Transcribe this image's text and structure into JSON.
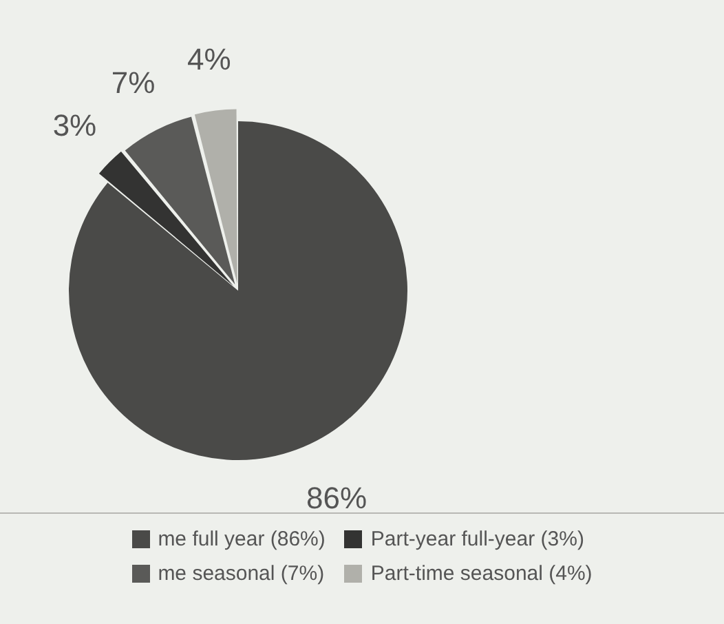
{
  "chart_data": {
    "type": "pie",
    "categories": [
      "me full year (86%)",
      "Part-year full-year (3%)",
      "me seasonal (7%)",
      "Part-time seasonal (4%)"
    ],
    "values": [
      86,
      3,
      7,
      4
    ],
    "colors": [
      "#4a4a48",
      "#333332",
      "#5a5a58",
      "#b0b0aa"
    ],
    "value_labels": [
      "86%",
      "3%",
      "7%",
      "4%"
    ],
    "legend": "bottom"
  }
}
